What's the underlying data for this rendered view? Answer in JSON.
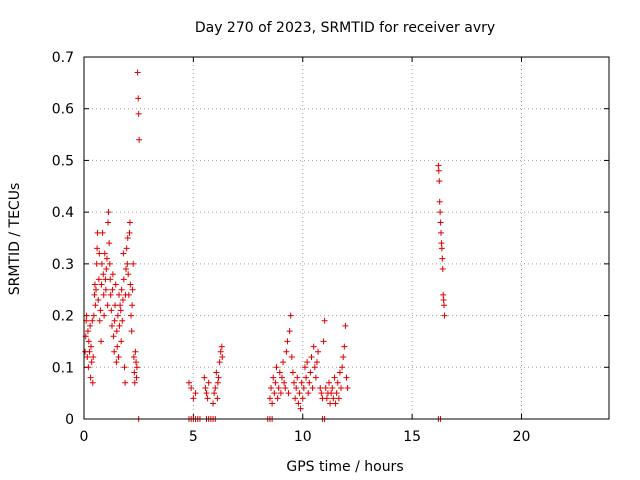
{
  "chart_data": {
    "type": "scatter",
    "title": "Day 270 of 2023, SRMTID for receiver avry",
    "xlabel": "GPS time / hours",
    "ylabel": "SRMTID / TECUs",
    "xlim": [
      0,
      24
    ],
    "ylim": [
      0,
      0.7
    ],
    "xticks": [
      0,
      5,
      10,
      15,
      20
    ],
    "xtick_labels": [
      "0",
      "5",
      "10",
      "15",
      "20"
    ],
    "yticks": [
      0,
      0.1,
      0.2,
      0.3,
      0.4,
      0.5,
      0.6,
      0.7
    ],
    "ytick_labels": [
      "0",
      "0.1",
      "0.2",
      "0.3",
      "0.4",
      "0.5",
      "0.6",
      "0.7"
    ],
    "grid": true,
    "marker": "+",
    "color": "#e00000",
    "series": [
      {
        "name": "SRMTID",
        "points": [
          [
            0.05,
            0.13
          ],
          [
            0.08,
            0.16
          ],
          [
            0.1,
            0.19
          ],
          [
            0.12,
            0.2
          ],
          [
            0.15,
            0.12
          ],
          [
            0.18,
            0.17
          ],
          [
            0.2,
            0.1
          ],
          [
            0.22,
            0.15
          ],
          [
            0.25,
            0.13
          ],
          [
            0.28,
            0.18
          ],
          [
            0.3,
            0.08
          ],
          [
            0.32,
            0.14
          ],
          [
            0.35,
            0.11
          ],
          [
            0.38,
            0.19
          ],
          [
            0.4,
            0.07
          ],
          [
            0.42,
            0.12
          ],
          [
            0.45,
            0.2
          ],
          [
            0.48,
            0.24
          ],
          [
            0.5,
            0.26
          ],
          [
            0.52,
            0.22
          ],
          [
            0.55,
            0.25
          ],
          [
            0.58,
            0.3
          ],
          [
            0.6,
            0.33
          ],
          [
            0.62,
            0.36
          ],
          [
            0.65,
            0.23
          ],
          [
            0.68,
            0.27
          ],
          [
            0.7,
            0.32
          ],
          [
            0.72,
            0.19
          ],
          [
            0.75,
            0.21
          ],
          [
            0.78,
            0.15
          ],
          [
            0.8,
            0.26
          ],
          [
            0.82,
            0.3
          ],
          [
            0.85,
            0.36
          ],
          [
            0.88,
            0.28
          ],
          [
            0.9,
            0.24
          ],
          [
            0.92,
            0.2
          ],
          [
            0.95,
            0.32
          ],
          [
            0.98,
            0.27
          ],
          [
            1.0,
            0.25
          ],
          [
            1.02,
            0.29
          ],
          [
            1.05,
            0.31
          ],
          [
            1.08,
            0.22
          ],
          [
            1.1,
            0.38
          ],
          [
            1.12,
            0.4
          ],
          [
            1.15,
            0.34
          ],
          [
            1.18,
            0.3
          ],
          [
            1.2,
            0.27
          ],
          [
            1.22,
            0.24
          ],
          [
            1.25,
            0.21
          ],
          [
            1.28,
            0.18
          ],
          [
            1.3,
            0.25
          ],
          [
            1.32,
            0.28
          ],
          [
            1.35,
            0.16
          ],
          [
            1.38,
            0.13
          ],
          [
            1.4,
            0.19
          ],
          [
            1.42,
            0.22
          ],
          [
            1.45,
            0.26
          ],
          [
            1.48,
            0.11
          ],
          [
            1.5,
            0.17
          ],
          [
            1.52,
            0.14
          ],
          [
            1.55,
            0.2
          ],
          [
            1.58,
            0.12
          ],
          [
            1.6,
            0.24
          ],
          [
            1.62,
            0.18
          ],
          [
            1.65,
            0.22
          ],
          [
            1.68,
            0.21
          ],
          [
            1.7,
            0.15
          ],
          [
            1.72,
            0.25
          ],
          [
            1.75,
            0.19
          ],
          [
            1.78,
            0.23
          ],
          [
            1.8,
            0.32
          ],
          [
            1.82,
            0.27
          ],
          [
            1.85,
            0.1
          ],
          [
            1.88,
            0.07
          ],
          [
            1.9,
            0.24
          ],
          [
            1.92,
            0.29
          ],
          [
            1.95,
            0.33
          ],
          [
            1.98,
            0.3
          ],
          [
            2.0,
            0.35
          ],
          [
            2.02,
            0.28
          ],
          [
            2.05,
            0.24
          ],
          [
            2.08,
            0.36
          ],
          [
            2.1,
            0.38
          ],
          [
            2.12,
            0.26
          ],
          [
            2.15,
            0.2
          ],
          [
            2.18,
            0.17
          ],
          [
            2.2,
            0.22
          ],
          [
            2.22,
            0.25
          ],
          [
            2.25,
            0.3
          ],
          [
            2.28,
            0.12
          ],
          [
            2.3,
            0.09
          ],
          [
            2.32,
            0.07
          ],
          [
            2.35,
            0.13
          ],
          [
            2.38,
            0.11
          ],
          [
            2.4,
            0.08
          ],
          [
            2.42,
            0.1
          ],
          [
            2.45,
            0.67
          ],
          [
            2.48,
            0.62
          ],
          [
            2.5,
            0.59
          ],
          [
            2.52,
            0.54
          ],
          [
            4.8,
            0.07
          ],
          [
            4.9,
            0.06
          ],
          [
            5.0,
            0.04
          ],
          [
            5.1,
            0.05
          ],
          [
            5.5,
            0.08
          ],
          [
            5.55,
            0.06
          ],
          [
            5.6,
            0.05
          ],
          [
            5.65,
            0.04
          ],
          [
            5.7,
            0.07
          ],
          [
            5.9,
            0.03
          ],
          [
            5.95,
            0.05
          ],
          [
            6.0,
            0.06
          ],
          [
            6.05,
            0.09
          ],
          [
            6.1,
            0.04
          ],
          [
            6.12,
            0.07
          ],
          [
            6.15,
            0.08
          ],
          [
            6.2,
            0.11
          ],
          [
            6.25,
            0.13
          ],
          [
            6.3,
            0.14
          ],
          [
            6.32,
            0.12
          ],
          [
            8.5,
            0.04
          ],
          [
            8.55,
            0.06
          ],
          [
            8.6,
            0.03
          ],
          [
            8.65,
            0.08
          ],
          [
            8.7,
            0.05
          ],
          [
            8.75,
            0.07
          ],
          [
            8.8,
            0.1
          ],
          [
            8.85,
            0.04
          ],
          [
            8.9,
            0.06
          ],
          [
            8.95,
            0.09
          ],
          [
            9.0,
            0.05
          ],
          [
            9.05,
            0.08
          ],
          [
            9.1,
            0.11
          ],
          [
            9.15,
            0.07
          ],
          [
            9.2,
            0.06
          ],
          [
            9.25,
            0.13
          ],
          [
            9.3,
            0.15
          ],
          [
            9.35,
            0.05
          ],
          [
            9.4,
            0.17
          ],
          [
            9.45,
            0.2
          ],
          [
            9.5,
            0.12
          ],
          [
            9.55,
            0.09
          ],
          [
            9.6,
            0.07
          ],
          [
            9.65,
            0.04
          ],
          [
            9.7,
            0.06
          ],
          [
            9.75,
            0.08
          ],
          [
            9.8,
            0.03
          ],
          [
            9.85,
            0.05
          ],
          [
            9.9,
            0.02
          ],
          [
            9.95,
            0.07
          ],
          [
            10.0,
            0.04
          ],
          [
            10.05,
            0.06
          ],
          [
            10.1,
            0.1
          ],
          [
            10.15,
            0.08
          ],
          [
            10.2,
            0.11
          ],
          [
            10.25,
            0.05
          ],
          [
            10.3,
            0.07
          ],
          [
            10.35,
            0.09
          ],
          [
            10.4,
            0.12
          ],
          [
            10.45,
            0.06
          ],
          [
            10.5,
            0.14
          ],
          [
            10.55,
            0.1
          ],
          [
            10.6,
            0.08
          ],
          [
            10.65,
            0.11
          ],
          [
            10.7,
            0.13
          ],
          [
            10.8,
            0.06
          ],
          [
            10.85,
            0.05
          ],
          [
            10.9,
            0.04
          ],
          [
            10.95,
            0.15
          ],
          [
            11.0,
            0.19
          ],
          [
            11.05,
            0.06
          ],
          [
            11.1,
            0.04
          ],
          [
            11.15,
            0.05
          ],
          [
            11.2,
            0.07
          ],
          [
            11.25,
            0.03
          ],
          [
            11.3,
            0.05
          ],
          [
            11.35,
            0.06
          ],
          [
            11.4,
            0.04
          ],
          [
            11.45,
            0.08
          ],
          [
            11.5,
            0.03
          ],
          [
            11.55,
            0.05
          ],
          [
            11.6,
            0.07
          ],
          [
            11.65,
            0.04
          ],
          [
            11.7,
            0.09
          ],
          [
            11.75,
            0.06
          ],
          [
            11.8,
            0.1
          ],
          [
            11.85,
            0.12
          ],
          [
            11.9,
            0.14
          ],
          [
            11.95,
            0.18
          ],
          [
            12.0,
            0.08
          ],
          [
            12.05,
            0.06
          ],
          [
            16.2,
            0.49
          ],
          [
            16.22,
            0.48
          ],
          [
            16.24,
            0.46
          ],
          [
            16.26,
            0.42
          ],
          [
            16.28,
            0.4
          ],
          [
            16.3,
            0.38
          ],
          [
            16.32,
            0.36
          ],
          [
            16.34,
            0.34
          ],
          [
            16.36,
            0.33
          ],
          [
            16.38,
            0.31
          ],
          [
            16.4,
            0.29
          ],
          [
            16.42,
            0.24
          ],
          [
            16.44,
            0.23
          ],
          [
            16.46,
            0.22
          ],
          [
            16.48,
            0.2
          ],
          [
            2.5,
            0.0
          ],
          [
            4.8,
            0.0
          ],
          [
            4.9,
            0.0
          ],
          [
            5.0,
            0.0
          ],
          [
            5.1,
            0.0
          ],
          [
            5.2,
            0.0
          ],
          [
            5.3,
            0.0
          ],
          [
            5.6,
            0.0
          ],
          [
            5.7,
            0.0
          ],
          [
            5.8,
            0.0
          ],
          [
            5.9,
            0.0
          ],
          [
            6.0,
            0.0
          ],
          [
            8.4,
            0.0
          ],
          [
            8.5,
            0.0
          ],
          [
            8.6,
            0.0
          ],
          [
            10.9,
            0.0
          ],
          [
            11.0,
            0.0
          ],
          [
            16.2,
            0.0
          ],
          [
            16.3,
            0.0
          ]
        ]
      }
    ]
  }
}
